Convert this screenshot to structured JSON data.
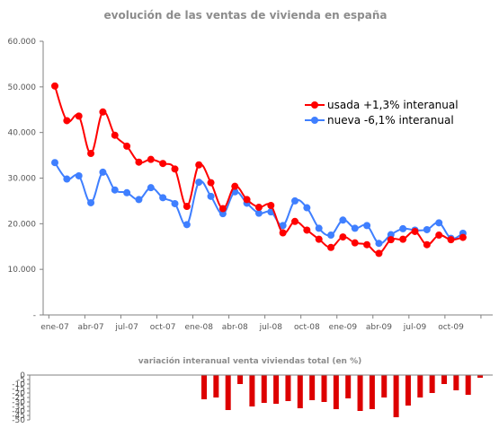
{
  "chart_data": [
    {
      "type": "line",
      "title": "evolución de las ventas de vivienda en españa",
      "ylim": [
        0,
        60000
      ],
      "yticks": [
        "-",
        "10.000",
        "20.000",
        "30.000",
        "40.000",
        "50.000",
        "60.000"
      ],
      "xticklabels": [
        "ene-07",
        "abr-07",
        "jul-07",
        "oct-07",
        "ene-08",
        "abr-08",
        "jul-08",
        "oct-08",
        "ene-09",
        "abr-09",
        "jul-09",
        "oct-09"
      ],
      "grid": false,
      "legend_position": "top-right",
      "colors": {
        "usada": "#ff0000",
        "nueva": "#3f7fff",
        "axis": "#808080"
      },
      "series": [
        {
          "name": "usada +1,3% interanual",
          "values": [
            50200,
            42600,
            43600,
            35400,
            44500,
            39400,
            37000,
            33500,
            34100,
            33200,
            32000,
            23800,
            32900,
            29000,
            23300,
            28200,
            25300,
            23600,
            24000,
            18000,
            20500,
            18600,
            16600,
            14800,
            17100,
            15800,
            15400,
            13500,
            16500,
            16600,
            18300,
            15400,
            17500,
            16500,
            17000
          ]
        },
        {
          "name": "nueva -6,1% interanual",
          "values": [
            33400,
            29800,
            30500,
            24600,
            31300,
            27400,
            26800,
            25300,
            27900,
            25700,
            24400,
            19800,
            29100,
            26000,
            22200,
            27000,
            24500,
            22300,
            22600,
            19600,
            25000,
            23500,
            19000,
            17500,
            20800,
            19000,
            19600,
            15700,
            17600,
            18900,
            18600,
            18700,
            20200,
            16800,
            17900
          ]
        }
      ]
    },
    {
      "type": "bar",
      "title": "variación interanual venta viviendas total (en %)",
      "ylim": [
        -50,
        0
      ],
      "yticks": [
        "-50",
        "-45",
        "-40",
        "-35",
        "-30",
        "-25",
        "-20",
        "-15",
        "-10",
        "-5",
        "0"
      ],
      "grid": false,
      "colors": {
        "bar": "#dd0000"
      },
      "values": [
        -27,
        -25,
        -39,
        -10,
        -35,
        -31,
        -32,
        -29,
        -37,
        -28,
        -30,
        -38,
        -26,
        -40,
        -38,
        -25,
        -47,
        -34,
        -25,
        -20,
        -10,
        -17,
        -22,
        -3
      ]
    }
  ]
}
